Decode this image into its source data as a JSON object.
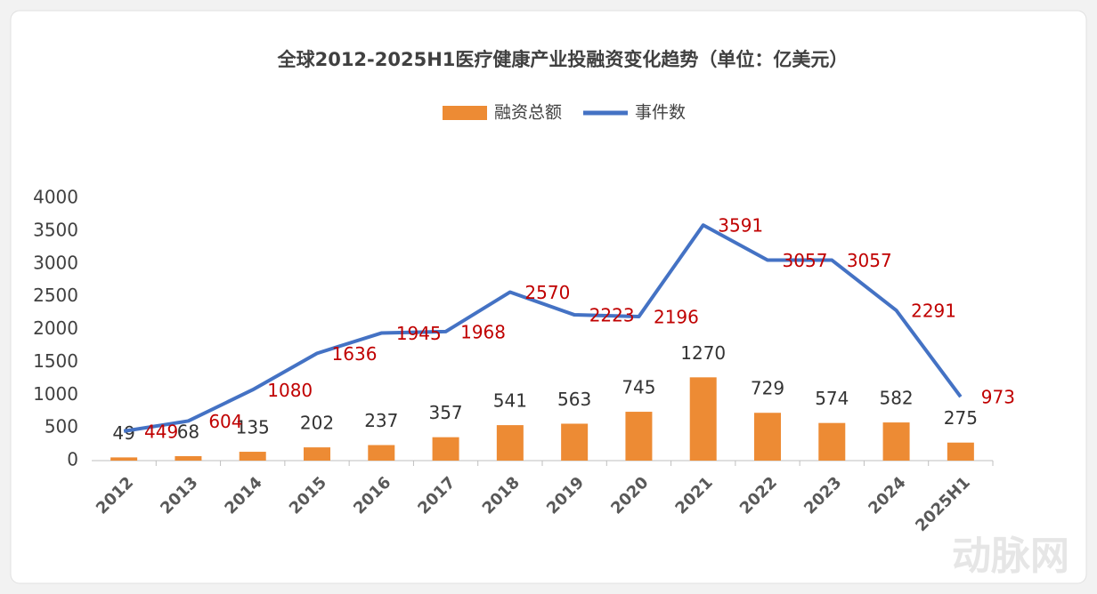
{
  "chart_data": {
    "type": "bar",
    "title": "全球2012-2025H1医疗健康产业投融资变化趋势（单位：亿美元）",
    "categories": [
      "2012",
      "2013",
      "2014",
      "2015",
      "2016",
      "2017",
      "2018",
      "2019",
      "2020",
      "2021",
      "2022",
      "2023",
      "2024",
      "2025H1"
    ],
    "series": [
      {
        "name": "融资总额",
        "type": "bar",
        "color": "#ed8b34",
        "label_color": "#333333",
        "values": [
          49,
          68,
          135,
          202,
          237,
          357,
          541,
          563,
          745,
          1270,
          729,
          574,
          582,
          275
        ]
      },
      {
        "name": "事件数",
        "type": "line",
        "color": "#4472c4",
        "label_color": "#c00000",
        "values": [
          449,
          604,
          1080,
          1636,
          1945,
          1968,
          2570,
          2223,
          2196,
          3591,
          3057,
          3057,
          2291,
          973
        ]
      }
    ],
    "ylim": [
      0,
      4000
    ],
    "yticks": [
      0,
      500,
      1000,
      1500,
      2000,
      2500,
      3000,
      3500,
      4000
    ],
    "grid": false,
    "watermark": "动脉网"
  }
}
